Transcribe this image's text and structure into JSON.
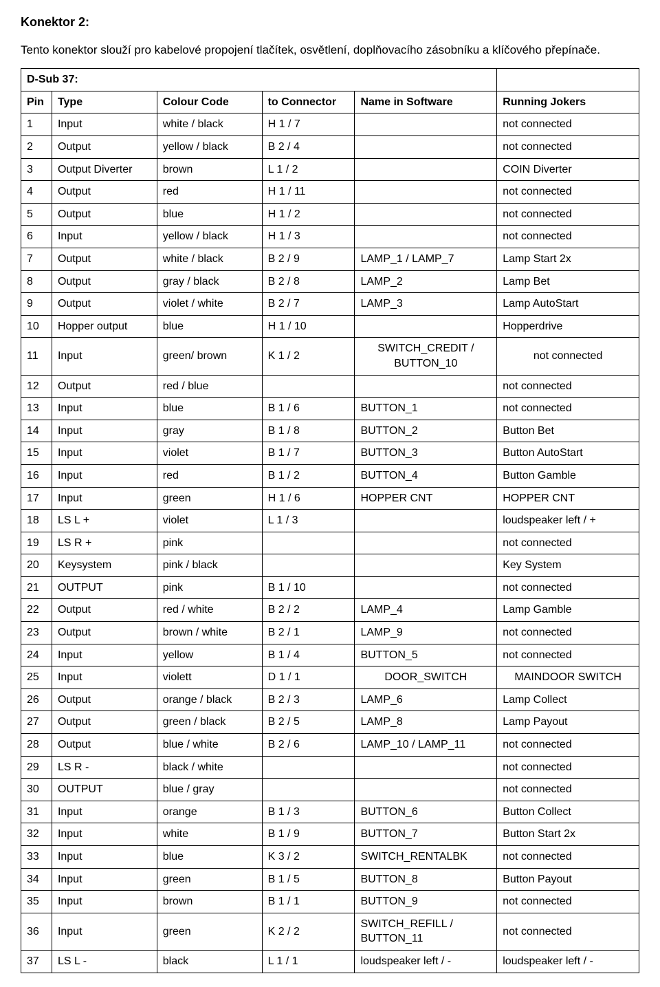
{
  "title": "Konektor 2:",
  "intro": "Tento konektor slouží pro kabelové propojení tlačítek, osvětlení, doplňovacího zásobníku a klíčového přepínače.",
  "header_dsub": "D-Sub 37:",
  "columns": [
    "Pin",
    "Type",
    "Colour Code",
    "to Connector",
    "Name in Software",
    "Running Jokers"
  ],
  "rows": [
    [
      "1",
      "Input",
      "white / black",
      "H 1 / 7",
      "",
      "not connected"
    ],
    [
      "2",
      "Output",
      "yellow / black",
      "B 2 / 4",
      "",
      "not connected"
    ],
    [
      "3",
      "Output Diverter",
      "brown",
      "L 1 / 2",
      "",
      "COIN Diverter"
    ],
    [
      "4",
      "Output",
      "red",
      "H 1 / 11",
      "",
      "not connected"
    ],
    [
      "5",
      "Output",
      "blue",
      "H 1 / 2",
      "",
      "not connected"
    ],
    [
      "6",
      "Input",
      "yellow / black",
      "H 1 / 3",
      "",
      "not connected"
    ],
    [
      "7",
      "Output",
      "white / black",
      "B 2 / 9",
      "LAMP_1 / LAMP_7",
      "Lamp Start  2x"
    ],
    [
      "8",
      "Output",
      "gray / black",
      "B 2 / 8",
      "LAMP_2",
      "Lamp Bet"
    ],
    [
      "9",
      "Output",
      "violet / white",
      "B 2 / 7",
      "LAMP_3",
      "Lamp AutoStart"
    ],
    [
      "10",
      "Hopper output",
      "blue",
      "H 1 / 10",
      "",
      "Hopperdrive"
    ],
    [
      "11",
      "Input",
      "green/ brown",
      "K 1 / 2",
      "SWITCH_CREDIT / BUTTON_10",
      "not connected"
    ],
    [
      "12",
      "Output",
      "red / blue",
      "",
      "",
      "not connected"
    ],
    [
      "13",
      "Input",
      "blue",
      "B 1 / 6",
      "BUTTON_1",
      "not connected"
    ],
    [
      "14",
      "Input",
      "gray",
      "B 1 / 8",
      "BUTTON_2",
      "Button Bet"
    ],
    [
      "15",
      "Input",
      "violet",
      "B 1 / 7",
      "BUTTON_3",
      "Button AutoStart"
    ],
    [
      "16",
      "Input",
      "red",
      "B 1 / 2",
      "BUTTON_4",
      "Button Gamble"
    ],
    [
      "17",
      "Input",
      "green",
      "H 1 / 6",
      "HOPPER CNT",
      "HOPPER CNT"
    ],
    [
      "18",
      "LS L +",
      "violet",
      "L 1 / 3",
      "",
      "loudspeaker left / +"
    ],
    [
      "19",
      "LS R +",
      "pink",
      "",
      "",
      "not connected"
    ],
    [
      "20",
      "Keysystem",
      "pink / black",
      "",
      "",
      "Key System"
    ],
    [
      "21",
      "OUTPUT",
      "pink",
      "B 1 / 10",
      "",
      "not connected"
    ],
    [
      "22",
      "Output",
      "red / white",
      "B 2 / 2",
      "LAMP_4",
      "Lamp Gamble"
    ],
    [
      "23",
      "Output",
      "brown / white",
      "B 2 / 1",
      "LAMP_9",
      "not connected"
    ],
    [
      "24",
      "Input",
      "yellow",
      "B 1 / 4",
      "BUTTON_5",
      "not connected"
    ],
    [
      "25",
      "Input",
      "violett",
      "D 1 / 1",
      "DOOR_SWITCH",
      "MAINDOOR SWITCH"
    ],
    [
      "26",
      "Output",
      "orange / black",
      "B 2 / 3",
      "LAMP_6",
      "Lamp Collect"
    ],
    [
      "27",
      "Output",
      "green / black",
      "B 2 / 5",
      "LAMP_8",
      "Lamp Payout"
    ],
    [
      "28",
      "Output",
      "blue / white",
      "B 2 / 6",
      "LAMP_10 / LAMP_11",
      "not connected"
    ],
    [
      "29",
      "LS R -",
      "black / white",
      "",
      "",
      "not connected"
    ],
    [
      "30",
      "OUTPUT",
      "blue / gray",
      "",
      "",
      "not connected"
    ],
    [
      "31",
      "Input",
      "orange",
      "B 1 / 3",
      "BUTTON_6",
      "Button Collect"
    ],
    [
      "32",
      "Input",
      "white",
      "B 1 / 9",
      "BUTTON_7",
      "Button Start 2x"
    ],
    [
      "33",
      "Input",
      "blue",
      "K 3 / 2",
      "SWITCH_RENTALBK",
      "not connected"
    ],
    [
      "34",
      "Input",
      "green",
      "B 1 / 5",
      "BUTTON_8",
      "Button Payout"
    ],
    [
      "35",
      "Input",
      "brown",
      "B 1 / 1",
      "BUTTON_9",
      "not connected"
    ],
    [
      "36",
      "Input",
      "green",
      "K 2 / 2",
      "SWITCH_REFILL / BUTTON_11",
      "not connected"
    ],
    [
      "37",
      "LS L -",
      "black",
      "L 1 / 1",
      "loudspeaker left / -",
      "loudspeaker left / -"
    ]
  ],
  "centered_name_rows": [
    10,
    24
  ],
  "style": {
    "background_color": "#ffffff",
    "text_color": "#000000",
    "border_color": "#000000",
    "font_family": "Arial, Helvetica, sans-serif",
    "title_fontsize": 18,
    "body_fontsize": 16
  }
}
